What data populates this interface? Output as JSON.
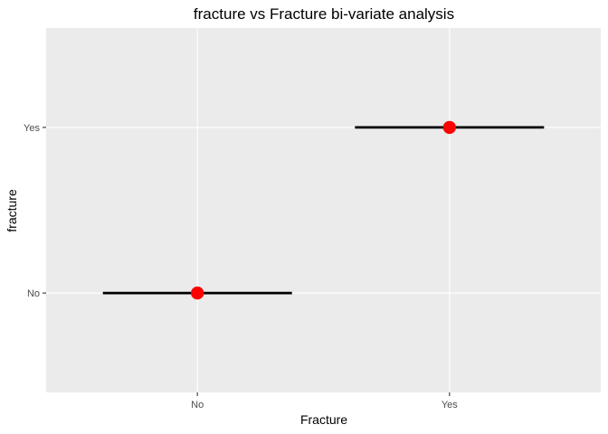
{
  "chart_data": {
    "type": "scatter",
    "title": "fracture vs Fracture bi-variate analysis",
    "xlabel": "Fracture",
    "ylabel": "fracture",
    "x_categories": [
      "No",
      "Yes"
    ],
    "y_categories": [
      "No",
      "Yes"
    ],
    "points": [
      {
        "x": "No",
        "y": "No"
      },
      {
        "x": "Yes",
        "y": "Yes"
      }
    ],
    "error_bars": [
      {
        "y": "No",
        "x_from": -0.375,
        "x_to": 0.375
      },
      {
        "y": "Yes",
        "x_from": 0.625,
        "x_to": 1.375
      }
    ],
    "grid": true,
    "panel_background": "#ebebeb",
    "grid_color": "#ffffff",
    "point_color": "#ff0000",
    "bar_color": "#000000"
  }
}
